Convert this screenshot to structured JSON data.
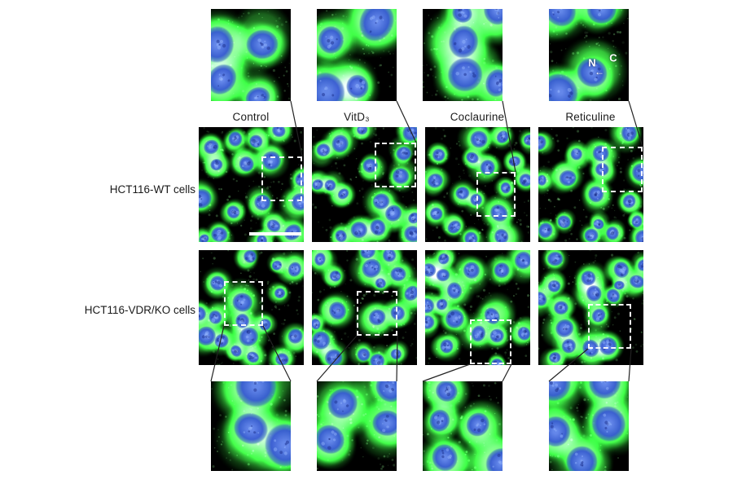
{
  "figure": {
    "treatments": [
      "Control",
      "VitD₃",
      "Coclaurine",
      "Reticuline"
    ],
    "cell_lines": [
      "HCT116-WT cells",
      "HCT116-VDR/KO cells"
    ],
    "annotations": {
      "nucleus_label": "N",
      "cytoplasm_label": "C",
      "arrow": "←"
    },
    "colors": {
      "cytoplasm_green": "#3ebe3e",
      "nucleus_blue": "#3456d2",
      "micrograph_background": "#000000",
      "zoom_box": "#ffffff",
      "connector_line": "#222222",
      "scale_bar": "#ffffff",
      "page_background": "#ffffff",
      "label_text": "#1a1a1a"
    },
    "scale_bar": {
      "present": true,
      "location": "HCT116-WT Control panel"
    },
    "panels": [
      {
        "name": "zoom-top-wt-control",
        "kind": "inset-zoom",
        "cell_line": "HCT116-WT cells",
        "treatment": "Control"
      },
      {
        "name": "zoom-top-wt-vitd3",
        "kind": "inset-zoom",
        "cell_line": "HCT116-WT cells",
        "treatment": "VitD₃"
      },
      {
        "name": "zoom-top-wt-coclaurine",
        "kind": "inset-zoom",
        "cell_line": "HCT116-WT cells",
        "treatment": "Coclaurine"
      },
      {
        "name": "zoom-top-wt-reticuline",
        "kind": "inset-zoom",
        "cell_line": "HCT116-WT cells",
        "treatment": "Reticuline"
      },
      {
        "name": "micrograph-wt-control",
        "kind": "micrograph",
        "cell_line": "HCT116-WT cells",
        "treatment": "Control"
      },
      {
        "name": "micrograph-wt-vitd3",
        "kind": "micrograph",
        "cell_line": "HCT116-WT cells",
        "treatment": "VitD₃"
      },
      {
        "name": "micrograph-wt-coclaurine",
        "kind": "micrograph",
        "cell_line": "HCT116-WT cells",
        "treatment": "Coclaurine"
      },
      {
        "name": "micrograph-wt-reticuline",
        "kind": "micrograph",
        "cell_line": "HCT116-WT cells",
        "treatment": "Reticuline"
      },
      {
        "name": "micrograph-ko-control",
        "kind": "micrograph",
        "cell_line": "HCT116-VDR/KO cells",
        "treatment": "Control"
      },
      {
        "name": "micrograph-ko-vitd3",
        "kind": "micrograph",
        "cell_line": "HCT116-VDR/KO cells",
        "treatment": "VitD₃"
      },
      {
        "name": "micrograph-ko-coclaurine",
        "kind": "micrograph",
        "cell_line": "HCT116-VDR/KO cells",
        "treatment": "Coclaurine"
      },
      {
        "name": "micrograph-ko-reticuline",
        "kind": "micrograph",
        "cell_line": "HCT116-VDR/KO cells",
        "treatment": "Reticuline"
      },
      {
        "name": "zoom-bottom-ko-control",
        "kind": "inset-zoom",
        "cell_line": "HCT116-VDR/KO cells",
        "treatment": "Control"
      },
      {
        "name": "zoom-bottom-ko-vitd3",
        "kind": "inset-zoom",
        "cell_line": "HCT116-VDR/KO cells",
        "treatment": "VitD₃"
      },
      {
        "name": "zoom-bottom-ko-coclaurine",
        "kind": "inset-zoom",
        "cell_line": "HCT116-VDR/KO cells",
        "treatment": "Coclaurine"
      },
      {
        "name": "zoom-bottom-ko-reticuline",
        "kind": "inset-zoom",
        "cell_line": "HCT116-VDR/KO cells",
        "treatment": "Reticuline"
      }
    ]
  }
}
